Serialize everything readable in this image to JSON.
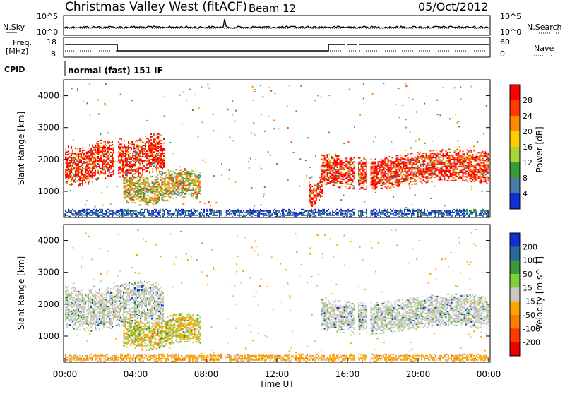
{
  "header": {
    "station": "Christmas Valley West (fitACF)",
    "beam": "Beam 12",
    "date": "05/Oct/2012"
  },
  "noise_panel": {
    "left_label": "N.Sky",
    "left_ticks": [
      "10^5",
      "10^0"
    ],
    "right_label": "N.Search",
    "right_ticks": [
      "10^5",
      "10^0"
    ]
  },
  "freq_panel": {
    "left_label_1": "Freq.",
    "left_label_2": "[MHz]",
    "left_ticks": [
      "18",
      "8"
    ],
    "right_label": "Nave",
    "right_ticks": [
      "60",
      "0"
    ]
  },
  "cpid": {
    "label": "CPID",
    "text": "normal (fast) 151 IF"
  },
  "chart_data": [
    {
      "type": "heatmap",
      "title": "Power",
      "ylabel": "Slant Range [km]",
      "xlabel": "",
      "xlim": [
        "00:00",
        "00:00"
      ],
      "ylim": [
        180,
        4500
      ],
      "y_ticks": [
        1000,
        2000,
        3000,
        4000
      ],
      "colorbar": {
        "label": "Power [dB]",
        "ticks": [
          "28",
          "24",
          "20",
          "16",
          "12",
          "8",
          "4"
        ],
        "colors": [
          "#ff0000",
          "#ff3a00",
          "#ff8a00",
          "#ffcc00",
          "#a6d83a",
          "#3a9a3a",
          "#4a7aa8",
          "#1030d0"
        ]
      },
      "regions": [
        {
          "t0": 0.0,
          "t1": 2.8,
          "r0": 1300,
          "r1": 2500,
          "level": "high"
        },
        {
          "t0": 3.0,
          "t1": 5.6,
          "r0": 1500,
          "r1": 2700,
          "level": "high"
        },
        {
          "t0": 3.3,
          "t1": 7.7,
          "r0": 700,
          "r1": 1600,
          "level": "mid"
        },
        {
          "t0": 14.5,
          "t1": 24.0,
          "r0": 1200,
          "r1": 2200,
          "level": "high"
        },
        {
          "t0": 13.8,
          "t1": 14.6,
          "r0": 600,
          "r1": 1300,
          "level": "high"
        },
        {
          "t0": 0.0,
          "t1": 24.0,
          "r0": 200,
          "r1": 450,
          "level": "low"
        }
      ]
    },
    {
      "type": "heatmap",
      "title": "Velocity",
      "ylabel": "Slant Range [km]",
      "xlabel": "Time UT",
      "x_ticks": [
        "00:00",
        "04:00",
        "08:00",
        "12:00",
        "16:00",
        "20:00",
        "00:00"
      ],
      "ylim": [
        180,
        4500
      ],
      "y_ticks": [
        1000,
        2000,
        3000,
        4000
      ],
      "colorbar": {
        "label": "Velocity [m s^-1]",
        "ticks": [
          "200",
          "100",
          "50",
          "15",
          "-15",
          "-50",
          "-100",
          "-200"
        ],
        "colors": [
          "#1030d0",
          "#2a6a9a",
          "#3a9a3a",
          "#7ed13a",
          "#c8c8c0",
          "#ffa500",
          "#ff7a00",
          "#ff3a00",
          "#ee0000"
        ]
      },
      "regions": [
        {
          "t0": 0.0,
          "t1": 5.6,
          "r0": 1300,
          "r1": 2600,
          "level": "gray"
        },
        {
          "t0": 3.3,
          "t1": 7.7,
          "r0": 700,
          "r1": 1600,
          "level": "orange-green"
        },
        {
          "t0": 14.5,
          "t1": 24.0,
          "r0": 1200,
          "r1": 2200,
          "level": "gray"
        },
        {
          "t0": 0.0,
          "t1": 24.0,
          "r0": 200,
          "r1": 450,
          "level": "orange"
        }
      ]
    }
  ]
}
